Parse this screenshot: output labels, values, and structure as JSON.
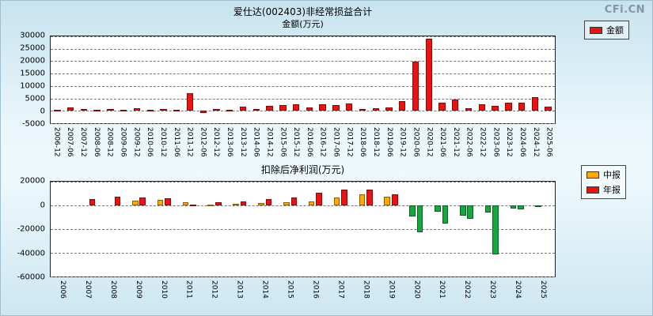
{
  "logo": "CFi.CN",
  "chart_data": [
    {
      "type": "bar",
      "title": "爱仕达(002403)非经常损益合计",
      "subtitle": "金额(万元)",
      "ylim": [
        -5000,
        30000
      ],
      "yticks": [
        30000,
        25000,
        20000,
        15000,
        10000,
        5000,
        0,
        -5000
      ],
      "grid": "dashed-horizontal",
      "legend_position": "top-right",
      "legend": [
        {
          "label": "金额",
          "color": "#ee1111"
        }
      ],
      "categories": [
        "2006-12",
        "2007-06",
        "2007-12",
        "2008-06",
        "2008-12",
        "2009-06",
        "2009-12",
        "2010-06",
        "2010-12",
        "2011-06",
        "2011-12",
        "2012-06",
        "2012-12",
        "2013-06",
        "2013-12",
        "2014-06",
        "2014-12",
        "2015-06",
        "2015-12",
        "2016-06",
        "2016-12",
        "2017-06",
        "2017-12",
        "2018-06",
        "2018-12",
        "2019-06",
        "2019-12",
        "2020-06",
        "2020-12",
        "2021-06",
        "2021-12",
        "2022-06",
        "2022-12",
        "2023-06",
        "2023-12",
        "2024-06",
        "2024-12",
        "2025-06"
      ],
      "series": [
        {
          "name": "金额",
          "color": "#ee1111",
          "values": [
            300,
            1300,
            600,
            500,
            800,
            300,
            900,
            300,
            600,
            500,
            7200,
            -800,
            600,
            500,
            1600,
            800,
            2100,
            2300,
            2600,
            1500,
            2600,
            2300,
            3100,
            600,
            900,
            1300,
            3900,
            19800,
            29000,
            3200,
            4600,
            900,
            2600,
            1900,
            3400,
            3400,
            5400,
            1800
          ]
        }
      ]
    },
    {
      "type": "bar",
      "title": "扣除后净利润(万元)",
      "ylim": [
        -60000,
        20000
      ],
      "yticks": [
        20000,
        0,
        -20000,
        -40000,
        -60000
      ],
      "grid": "dashed-horizontal",
      "legend_position": "top-right",
      "negative_color": "#15a83e",
      "legend": [
        {
          "label": "中报",
          "color": "#ffaa00"
        },
        {
          "label": "年报",
          "color": "#ee1111"
        }
      ],
      "categories": [
        "2006",
        "2007",
        "2008",
        "2009",
        "2010",
        "2011",
        "2012",
        "2013",
        "2014",
        "2015",
        "2016",
        "2017",
        "2018",
        "2019",
        "2020",
        "2021",
        "2022",
        "2023",
        "2024",
        "2025"
      ],
      "series": [
        {
          "name": "中报",
          "color": "#ffaa00",
          "values": [
            0,
            0,
            0,
            4200,
            4800,
            3000,
            900,
            1500,
            2100,
            2600,
            3600,
            6600,
            9100,
            7100,
            -9000,
            -5000,
            -8500,
            -6000,
            -2500,
            -1500
          ]
        },
        {
          "name": "年报",
          "color": "#ee1111",
          "values": [
            0,
            5600,
            7200,
            6800,
            6300,
            800,
            2600,
            3600,
            5600,
            6600,
            10600,
            13100,
            13600,
            9100,
            -22500,
            -15500,
            -11000,
            -41000,
            -3500,
            0
          ]
        }
      ]
    }
  ]
}
